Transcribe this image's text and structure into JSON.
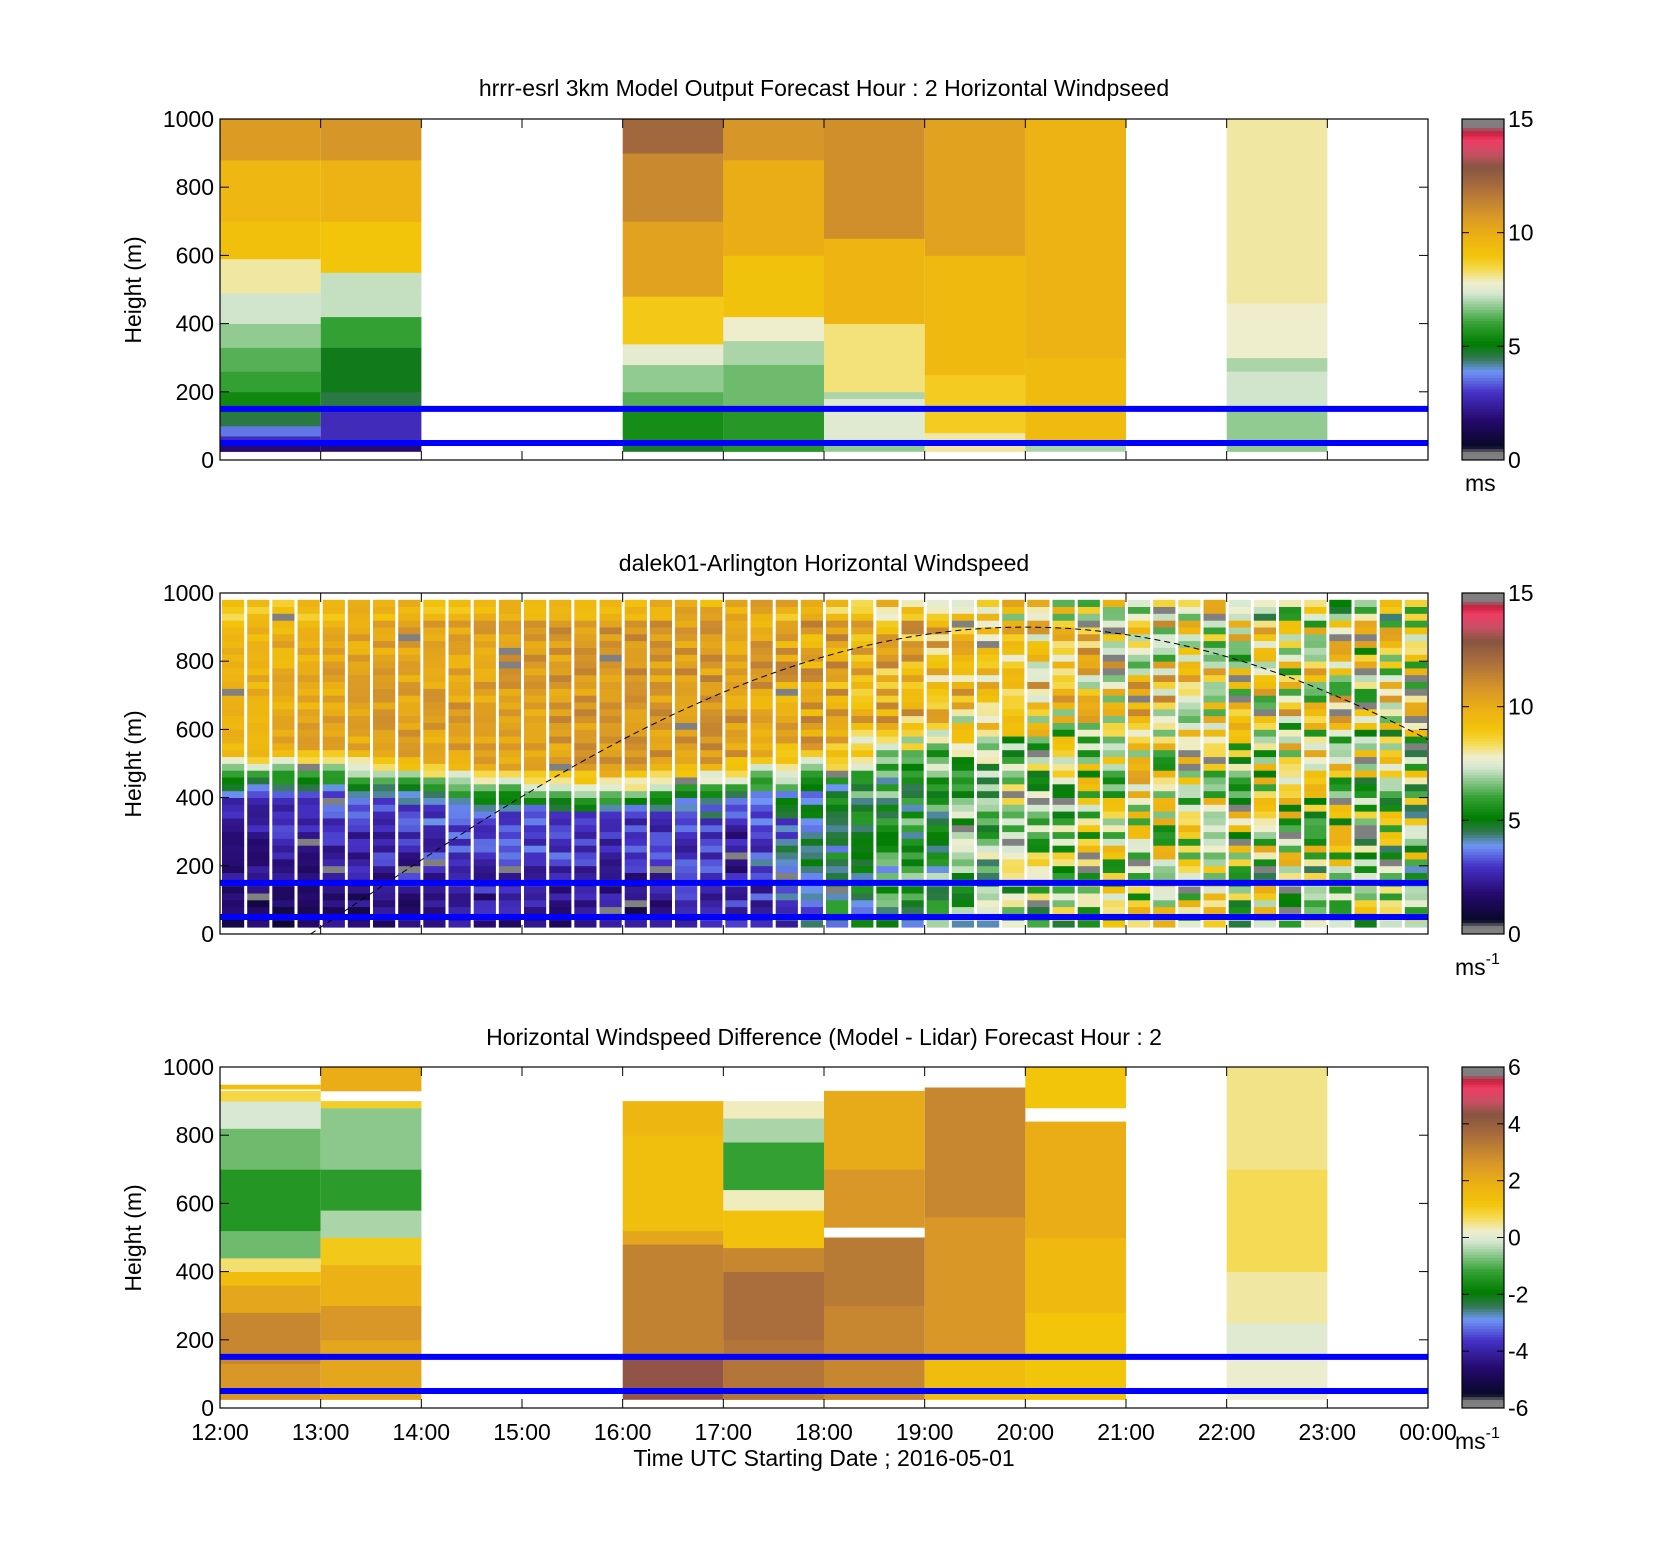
{
  "figure": {
    "xlabel": "Time UTC  Starting Date ; 2016-05-01",
    "x_ticks": [
      "12:00",
      "13:00",
      "14:00",
      "15:00",
      "16:00",
      "17:00",
      "18:00",
      "19:00",
      "20:00",
      "21:00",
      "22:00",
      "23:00",
      "00:00"
    ],
    "overlay_line_color": "#0000ff"
  },
  "chart_data": [
    {
      "type": "heatmap",
      "title": "hrrr-esrl 3km Model Output   Forecast Hour : 2 Horizontal Windpseed",
      "ylabel": "Height (m)",
      "ylim": [
        0,
        1000
      ],
      "y_ticks": [
        "0",
        "200",
        "400",
        "600",
        "800",
        "1000"
      ],
      "colorbar": {
        "range": [
          0,
          15
        ],
        "ticks": [
          "0",
          "5",
          "10",
          "15"
        ],
        "unit": "ms",
        "unit_sup": ""
      },
      "hlines_m": [
        150,
        50
      ],
      "columns": [
        {
          "hour": 12,
          "segments": [
            [
              25,
              45,
              1.8
            ],
            [
              45,
              70,
              2.8
            ],
            [
              70,
              100,
              3.6
            ],
            [
              100,
              140,
              4.6
            ],
            [
              140,
              200,
              5.4
            ],
            [
              200,
              260,
              6.0
            ],
            [
              260,
              330,
              6.3
            ],
            [
              330,
              400,
              6.8
            ],
            [
              400,
              490,
              7.3
            ],
            [
              490,
              590,
              8.0
            ],
            [
              590,
              700,
              9.2
            ],
            [
              700,
              880,
              9.6
            ],
            [
              880,
              1000,
              10.6
            ]
          ]
        },
        {
          "hour": 13,
          "segments": [
            [
              25,
              60,
              1.8
            ],
            [
              60,
              150,
              2.8
            ],
            [
              150,
              200,
              4.6
            ],
            [
              200,
              330,
              4.9
            ],
            [
              330,
              420,
              6.0
            ],
            [
              420,
              550,
              7.2
            ],
            [
              550,
              700,
              9.0
            ],
            [
              700,
              880,
              9.8
            ],
            [
              880,
              1000,
              10.8
            ]
          ]
        },
        {
          "hour": 16,
          "segments": [
            [
              25,
              50,
              4.8
            ],
            [
              50,
              150,
              5.5
            ],
            [
              150,
              200,
              6.3
            ],
            [
              200,
              280,
              6.8
            ],
            [
              280,
              340,
              7.6
            ],
            [
              340,
              480,
              8.9
            ],
            [
              480,
              700,
              10.4
            ],
            [
              700,
              900,
              11.2
            ],
            [
              900,
              1000,
              12.2
            ]
          ]
        },
        {
          "hour": 17,
          "segments": [
            [
              25,
              150,
              5.8
            ],
            [
              150,
              280,
              6.5
            ],
            [
              280,
              350,
              7.0
            ],
            [
              350,
              420,
              7.8
            ],
            [
              420,
              600,
              9.1
            ],
            [
              600,
              880,
              10.0
            ],
            [
              880,
              1000,
              10.8
            ]
          ]
        },
        {
          "hour": 18,
          "segments": [
            [
              25,
              60,
              6.8
            ],
            [
              60,
              180,
              7.5
            ],
            [
              180,
              200,
              7.0
            ],
            [
              200,
              400,
              8.2
            ],
            [
              400,
              650,
              9.7
            ],
            [
              650,
              1000,
              11.0
            ]
          ]
        },
        {
          "hour": 19,
          "segments": [
            [
              25,
              80,
              8.0
            ],
            [
              80,
              250,
              8.8
            ],
            [
              250,
              600,
              9.5
            ],
            [
              600,
              1000,
              10.4
            ]
          ]
        },
        {
          "hour": 20,
          "segments": [
            [
              25,
              50,
              7.0
            ],
            [
              50,
              300,
              9.4
            ],
            [
              300,
              1000,
              9.8
            ]
          ]
        },
        {
          "hour": 22,
          "segments": [
            [
              25,
              150,
              6.8
            ],
            [
              150,
              260,
              7.3
            ],
            [
              260,
              300,
              7.0
            ],
            [
              300,
              460,
              7.8
            ],
            [
              460,
              1000,
              8.0
            ]
          ]
        }
      ]
    },
    {
      "type": "heatmap",
      "title": "dalek01-Arlington  Horizontal Windspeed",
      "ylabel": "Height (m)",
      "ylim": [
        0,
        1000
      ],
      "y_ticks": [
        "0",
        "200",
        "400",
        "600",
        "800",
        "1000"
      ],
      "colorbar": {
        "range": [
          0,
          15
        ],
        "ticks": [
          "0",
          "5",
          "10",
          "15"
        ],
        "unit": "ms",
        "unit_sup": "-1"
      },
      "hlines_m": [
        150,
        50
      ],
      "top_m": 980,
      "col_width_h": 0.25,
      "bin_m": 20,
      "profile_anchors": {
        "hours": [
          12,
          13,
          14,
          15,
          16,
          17,
          18,
          19,
          20,
          21,
          22,
          23,
          24
        ],
        "jet_base_m": [
          470,
          480,
          450,
          430,
          420,
          460,
          520,
          600,
          660,
          700,
          700,
          700,
          700
        ],
        "low_level_ms": [
          1.3,
          1.5,
          1.9,
          2.0,
          1.6,
          2.3,
          4.6,
          5.5,
          6.5,
          7.5,
          7.2,
          7.0,
          6.5
        ],
        "upper_ms": [
          9.6,
          10.2,
          10.4,
          10.6,
          10.7,
          10.6,
          10.2,
          9.6,
          9.3,
          8.7,
          8.2,
          8.0,
          7.8
        ],
        "scatter_ms": [
          0.6,
          0.7,
          0.8,
          0.8,
          0.8,
          1.0,
          1.4,
          1.8,
          2.2,
          2.6,
          2.8,
          2.8,
          2.8
        ]
      },
      "curve": {
        "style": "dashed",
        "start_hour": 12.9,
        "end_hour": 24.0,
        "peak_hour": 20.0,
        "peak_m": 900
      }
    },
    {
      "type": "heatmap",
      "title": "Horizontal Windspeed Difference (Model - Lidar) Forecast Hour : 2",
      "ylabel": "Height (m)",
      "ylim": [
        0,
        1000
      ],
      "y_ticks": [
        "0",
        "200",
        "400",
        "600",
        "800",
        "1000"
      ],
      "colorbar": {
        "range": [
          -6,
          6
        ],
        "ticks": [
          "-6",
          "-4",
          "-2",
          "0",
          "2",
          "4",
          "6"
        ],
        "unit": "ms",
        "unit_sup": "-1"
      },
      "hlines_m": [
        150,
        50
      ],
      "columns": [
        {
          "hour": 12,
          "segments": [
            [
              25,
              130,
              2.6
            ],
            [
              130,
              280,
              3.0
            ],
            [
              280,
              360,
              2.2
            ],
            [
              360,
              400,
              1.5
            ],
            [
              400,
              440,
              0.6
            ],
            [
              440,
              520,
              -0.8
            ],
            [
              520,
              700,
              -1.4
            ],
            [
              700,
              820,
              -0.8
            ],
            [
              820,
              900,
              -0.1
            ],
            [
              900,
              930,
              0.8
            ],
            [
              935,
              948,
              1.4
            ]
          ]
        },
        {
          "hour": 13,
          "segments": [
            [
              25,
              200,
              2.2
            ],
            [
              200,
              300,
              2.6
            ],
            [
              300,
              420,
              1.9
            ],
            [
              420,
              500,
              1.1
            ],
            [
              500,
              580,
              -0.4
            ],
            [
              580,
              700,
              -1.3
            ],
            [
              700,
              880,
              -0.6
            ],
            [
              880,
              900,
              1.0
            ],
            [
              930,
              1000,
              2.0
            ]
          ]
        },
        {
          "hour": 16,
          "segments": [
            [
              25,
              160,
              4.4
            ],
            [
              160,
              480,
              3.1
            ],
            [
              480,
              520,
              2.2
            ],
            [
              520,
              800,
              1.4
            ],
            [
              800,
              900,
              1.7
            ]
          ]
        },
        {
          "hour": 17,
          "segments": [
            [
              25,
              200,
              3.4
            ],
            [
              200,
              400,
              3.6
            ],
            [
              400,
              470,
              3.0
            ],
            [
              470,
              580,
              1.3
            ],
            [
              580,
              640,
              0.3
            ],
            [
              640,
              780,
              -1.2
            ],
            [
              780,
              850,
              -0.4
            ],
            [
              850,
              900,
              0.3
            ]
          ]
        },
        {
          "hour": 18,
          "segments": [
            [
              25,
              300,
              3.0
            ],
            [
              300,
              500,
              3.3
            ],
            [
              530,
              700,
              2.6
            ],
            [
              700,
              930,
              2.1
            ]
          ]
        },
        {
          "hour": 19,
          "segments": [
            [
              25,
              150,
              1.5
            ],
            [
              150,
              560,
              2.6
            ],
            [
              560,
              940,
              3.0
            ]
          ]
        },
        {
          "hour": 20,
          "segments": [
            [
              25,
              280,
              1.2
            ],
            [
              280,
              500,
              1.6
            ],
            [
              500,
              840,
              2.0
            ],
            [
              880,
              1000,
              1.2
            ]
          ]
        },
        {
          "hour": 22,
          "segments": [
            [
              25,
              150,
              0.2
            ],
            [
              150,
              250,
              0.0
            ],
            [
              250,
              400,
              0.4
            ],
            [
              400,
              700,
              0.7
            ],
            [
              700,
              1000,
              0.5
            ]
          ]
        }
      ]
    }
  ]
}
